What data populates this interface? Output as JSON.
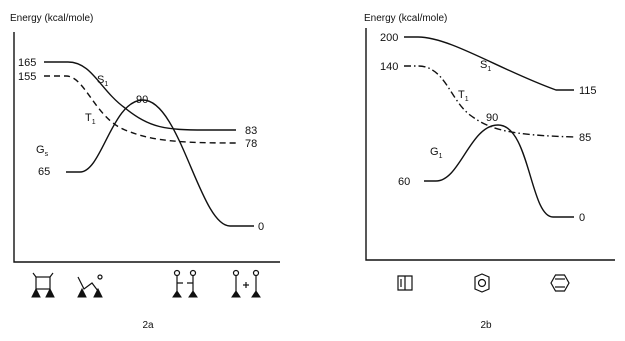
{
  "panel_a": {
    "ylabel": "Energy (kcal/mole)",
    "caption": "2a",
    "levels": {
      "s1_start": "165",
      "t1_start": "155",
      "g_start": "65",
      "peak": "90",
      "s_end": "83",
      "t_end": "78",
      "g_end": "0"
    },
    "curves": {
      "s_label": "S",
      "s_sub": "1",
      "t_label": "T",
      "t_sub": "1",
      "g_label": "G",
      "g_sub": "s"
    }
  },
  "panel_b": {
    "ylabel": "Energy (kcal/mole)",
    "caption": "2b",
    "levels": {
      "s1_start": "200",
      "t1_start": "140",
      "g_start": "60",
      "peak": "90",
      "s_end": "115",
      "t_end": "85",
      "g_end": "0"
    },
    "curves": {
      "s_label": "S",
      "s_sub": "1",
      "t_label": "T",
      "t_sub": "1",
      "g_label": "G",
      "g_sub": "1"
    }
  }
}
